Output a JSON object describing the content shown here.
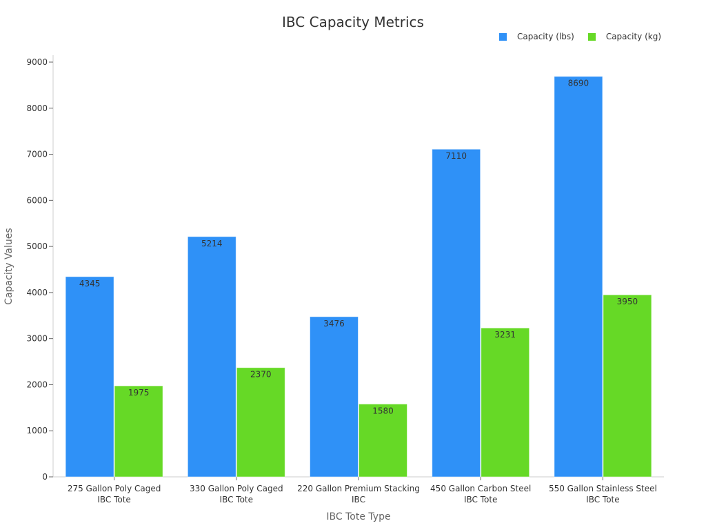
{
  "chart": {
    "title": "IBC Capacity Metrics",
    "xlabel": "IBC Tote Type",
    "ylabel": "Capacity Values",
    "legend": [
      {
        "label": "Capacity (lbs)",
        "color": "#2f91f7"
      },
      {
        "label": "Capacity (kg)",
        "color": "#66d926"
      }
    ]
  },
  "chart_data": {
    "type": "bar",
    "title": "IBC Capacity Metrics",
    "xlabel": "IBC Tote Type",
    "ylabel": "Capacity Values",
    "categories": [
      [
        "275 Gallon Poly Caged",
        "IBC Tote"
      ],
      [
        "330 Gallon Poly Caged",
        "IBC Tote"
      ],
      [
        "220 Gallon Premium Stacking",
        "IBC"
      ],
      [
        "450 Gallon Carbon Steel",
        "IBC Tote"
      ],
      [
        "550 Gallon Stainless Steel",
        "IBC Tote"
      ]
    ],
    "series": [
      {
        "name": "Capacity (lbs)",
        "color": "#2f91f7",
        "values": [
          4345,
          5214,
          3476,
          7110,
          8690
        ]
      },
      {
        "name": "Capacity (kg)",
        "color": "#66d926",
        "values": [
          1975,
          2370,
          1580,
          3231,
          3950
        ]
      }
    ],
    "yticks": [
      0,
      1000,
      2000,
      3000,
      4000,
      5000,
      6000,
      7000,
      8000,
      9000
    ],
    "ylim": [
      0,
      9000
    ],
    "grid": false,
    "legend_position": "top-right"
  }
}
